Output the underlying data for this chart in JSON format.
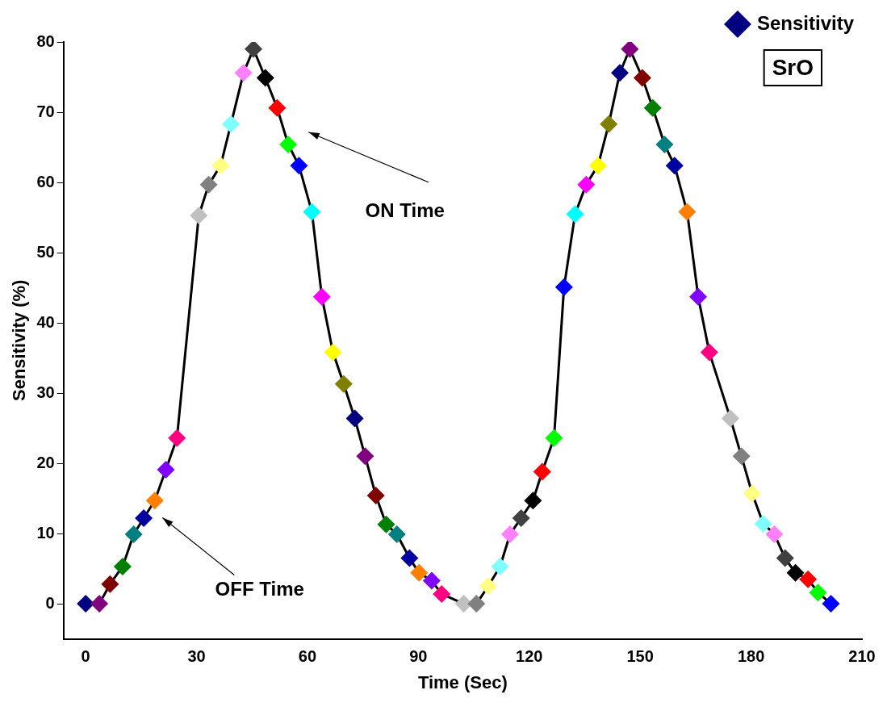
{
  "chart_data": {
    "type": "line",
    "xlabel": "Time (Sec)",
    "ylabel": "Sensitivity (%)",
    "xlim": [
      -6,
      210
    ],
    "xticks": [
      0,
      30,
      60,
      90,
      120,
      150,
      180,
      210
    ],
    "ylim": [
      -5,
      80
    ],
    "yticks": [
      0,
      10,
      20,
      30,
      40,
      50,
      60,
      70,
      80
    ],
    "grid": false,
    "legend": "top right",
    "marker": "diamond",
    "line_style": "solid",
    "annotations": [
      "ON Time",
      "OFF Time",
      "SrO"
    ],
    "series": [
      {
        "name": "Sensitivity",
        "color": "#000000",
        "x": [
          0,
          3.7,
          6.6,
          10,
          13,
          15.7,
          18.7,
          21.7,
          24.7,
          27.6,
          30.6,
          33.3,
          36.5,
          39.3,
          42.7,
          45.4,
          48.6,
          51.8,
          54.8,
          57.7,
          61.2,
          63.9,
          66.9,
          69.8,
          72.8,
          75.6,
          78.5,
          81.3,
          84.2,
          87.6,
          90.2,
          93.6,
          96.3,
          99.3,
          102.3,
          105.7,
          108.9,
          112.1,
          114.8,
          117.8,
          121,
          123.5,
          126.7,
          129.4,
          132.4,
          135.4,
          138.6,
          141.5,
          144.5,
          147.2,
          150.6,
          153.4,
          156.6,
          159.3,
          162.7,
          165.7,
          168.7,
          171.5,
          174.4,
          177.4,
          180.3,
          183.3,
          186.3,
          189.2,
          192,
          195.4,
          198.1,
          201.6
        ],
        "values": [
          0,
          0,
          2.8,
          5.3,
          9.9,
          12.2,
          14.7,
          19.1,
          23.6,
          null,
          55.3,
          59.7,
          62.4,
          68.3,
          75.6,
          79,
          74.9,
          70.6,
          65.4,
          62.4,
          55.8,
          43.7,
          35.8,
          31.3,
          26.4,
          21,
          15.4,
          11.3,
          9.9,
          6.5,
          4.4,
          3.3,
          1.4,
          null,
          0,
          0,
          2.5,
          5.3,
          9.9,
          12.2,
          14.7,
          18.8,
          23.6,
          45.1,
          55.5,
          59.7,
          62.4,
          68.3,
          75.6,
          79,
          74.9,
          70.6,
          65.4,
          62.4,
          55.8,
          43.7,
          35.8,
          null,
          26.4,
          21,
          15.7,
          11.4,
          9.9,
          6.5,
          4.4,
          3.5,
          1.6,
          0
        ],
        "colors": [
          "#000080",
          "#800080",
          "#800000",
          "#008000",
          "#008080",
          "#0000a0",
          "#ff8000",
          "#8000ff",
          "#ff0080",
          "#ffffff",
          "#c0c0c0",
          "#808080",
          "#ffff80",
          "#80ffff",
          "#ff80ff",
          "#404040",
          "#000000",
          "#ff0000",
          "#00ff00",
          "#0000ff",
          "#00ffff",
          "#ff00ff",
          "#ffff00",
          "#808000",
          "#000080",
          "#800080",
          "#800000",
          "#008000",
          "#008080",
          "#0000a0",
          "#ff8000",
          "#8000ff",
          "#ff0080",
          "#ffffff",
          "#c0c0c0",
          "#808080",
          "#ffff80",
          "#80ffff",
          "#ff80ff",
          "#404040",
          "#000000",
          "#ff0000",
          "#00ff00",
          "#0000ff",
          "#00ffff",
          "#ff00ff",
          "#ffff00",
          "#808000",
          "#000080",
          "#800080",
          "#800000",
          "#008000",
          "#008080",
          "#0000a0",
          "#ff8000",
          "#8000ff",
          "#ff0080",
          "#ffffff",
          "#c0c0c0",
          "#808080",
          "#ffff80",
          "#80ffff",
          "#ff80ff",
          "#404040",
          "#000000",
          "#ff0000",
          "#00ff00",
          "#0000ff"
        ]
      }
    ]
  }
}
